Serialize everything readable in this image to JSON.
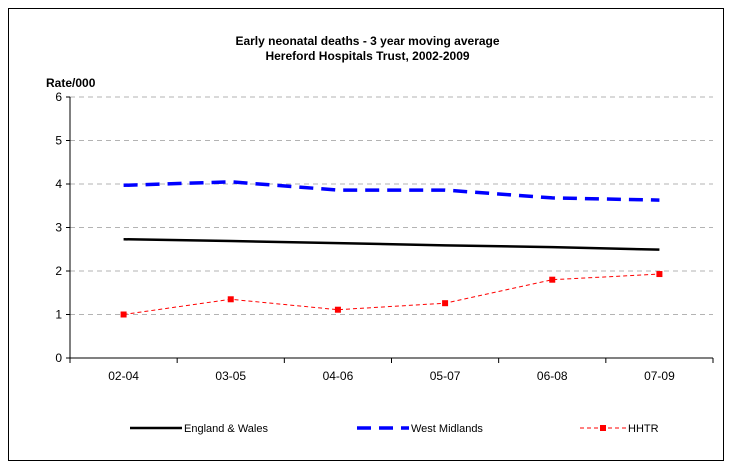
{
  "chart_data": {
    "type": "line",
    "title": "Early neonatal deaths - 3 year moving average",
    "subtitle": "Hereford Hospitals Trust, 2002-2009",
    "ylabel": "Rate/000",
    "xlabel": "",
    "categories": [
      "02-04",
      "03-05",
      "04-06",
      "05-07",
      "06-08",
      "07-09"
    ],
    "ylim": [
      0,
      6
    ],
    "yticks": [
      0,
      1,
      2,
      3,
      4,
      5,
      6
    ],
    "grid": true,
    "legend_position": "bottom",
    "series": [
      {
        "name": "England & Wales",
        "values": [
          2.73,
          2.69,
          2.64,
          2.59,
          2.55,
          2.49
        ],
        "color": "#000000",
        "style": "solid"
      },
      {
        "name": "West Midlands",
        "values": [
          3.97,
          4.05,
          3.86,
          3.86,
          3.68,
          3.63
        ],
        "color": "#0000ff",
        "style": "dashed"
      },
      {
        "name": "HHTR",
        "values": [
          1.0,
          1.35,
          1.11,
          1.26,
          1.8,
          1.93
        ],
        "color": "#ff0000",
        "style": "dashed-marker"
      }
    ]
  }
}
